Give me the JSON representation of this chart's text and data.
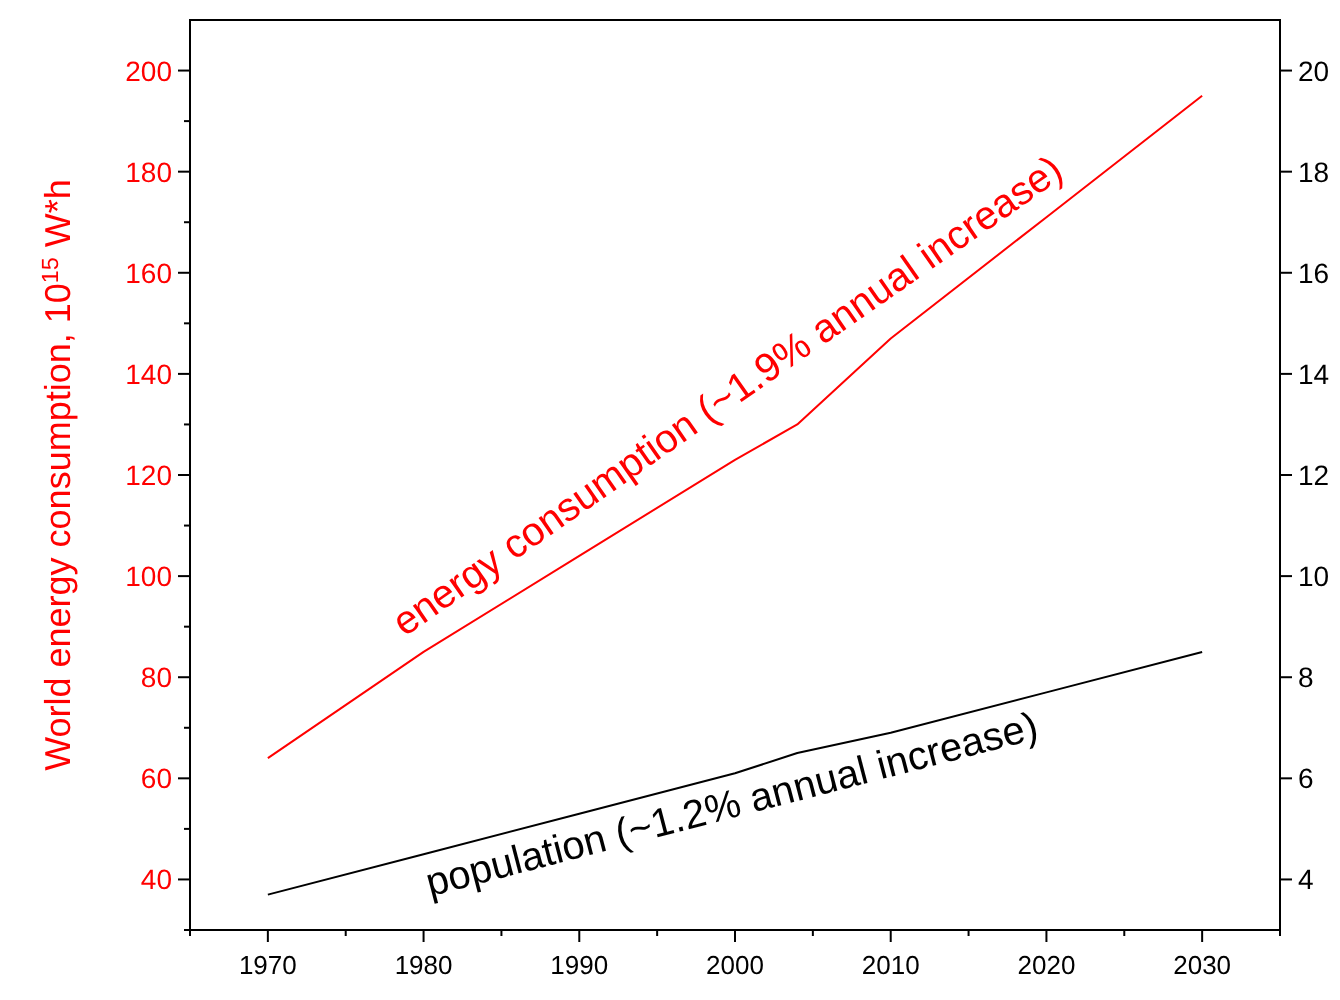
{
  "chart_data": {
    "type": "line",
    "ylabel": "World energy consumption, 10$^{15}$ W*h",
    "xlim": [
      1965,
      2035
    ],
    "xticks": [
      {
        "value": 1965,
        "label": null
      },
      1970,
      {
        "value": 1975,
        "label": null
      },
      1980,
      {
        "value": 1985,
        "label": null
      },
      1990,
      {
        "value": 1995,
        "label": null
      },
      2000,
      {
        "value": 2005,
        "label": null
      },
      2010,
      {
        "value": 2015,
        "label": null
      },
      2020,
      {
        "value": 2025,
        "label": null
      },
      2030,
      {
        "value": 2035,
        "label": null
      }
    ],
    "ylim": [
      30,
      210
    ],
    "yticks": [
      {
        "value": 30,
        "label": null
      },
      40,
      {
        "value": 50,
        "label": null
      },
      60,
      {
        "value": 70,
        "label": null
      },
      80,
      {
        "value": 90,
        "label": null
      },
      100,
      {
        "value": 110,
        "label": null
      },
      120,
      {
        "value": 130,
        "label": null
      },
      140,
      {
        "value": 150,
        "label": null
      },
      160,
      {
        "value": 170,
        "label": null
      },
      180,
      {
        "value": 190,
        "label": null
      },
      200
    ],
    "y2lim": [
      3,
      21
    ],
    "y2ticks": [
      4,
      6,
      8,
      10,
      12,
      14,
      16,
      18,
      20
    ],
    "grid": false,
    "series": [
      {
        "name": "energy consumption (~1.9% annual increase)",
        "color": "#ff0000",
        "x": [
          1970,
          1980,
          1990,
          2000,
          2004,
          2010,
          2020,
          2030
        ],
        "values": [
          64,
          85,
          104,
          123,
          130,
          147,
          171,
          195
        ]
      },
      {
        "name": "population (~1.2% annual increase)",
        "color": "#000000",
        "axis": "y2",
        "x": [
          1970,
          1980,
          1990,
          2000,
          2004,
          2010,
          2020,
          2030
        ],
        "values": [
          3.7,
          4.5,
          5.3,
          6.1,
          6.5,
          6.9,
          7.7,
          8.5
        ]
      }
    ]
  }
}
